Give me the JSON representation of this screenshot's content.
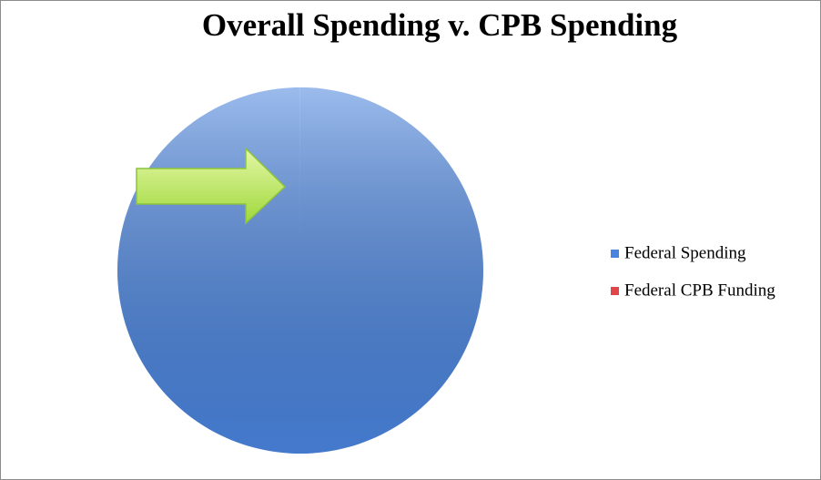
{
  "chart_data": {
    "type": "pie",
    "title": "Overall Spending v. CPB Spending",
    "categories": [
      "Federal Spending",
      "Federal CPB Funding"
    ],
    "values": [
      99.99,
      0.01
    ],
    "colors": [
      "#4a84de",
      "#e0454a"
    ],
    "legend": "right"
  }
}
